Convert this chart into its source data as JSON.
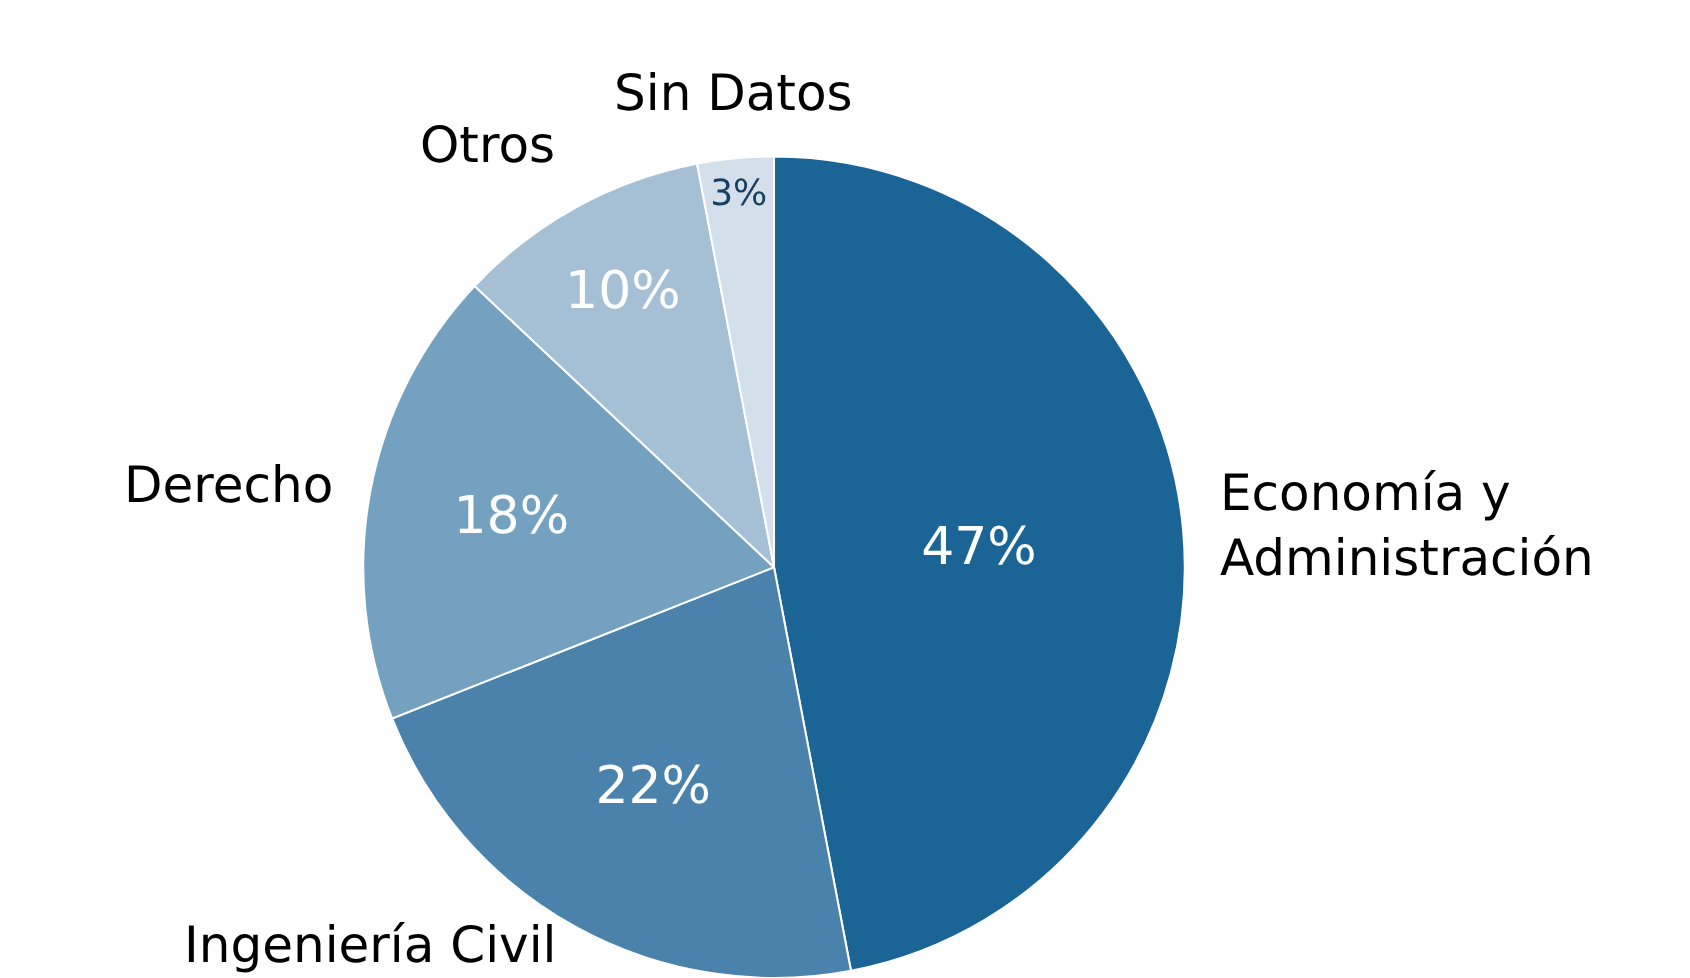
{
  "chart_data": {
    "type": "pie",
    "categories": [
      "Economía y\nAdministración",
      "Ingeniería Civil",
      "Derecho",
      "Otros",
      "Sin Datos"
    ],
    "values": [
      47,
      22,
      18,
      10,
      3
    ],
    "colors": [
      "#1a6496",
      "#4a82ab",
      "#75a1c0",
      "#a5bfd5",
      "#d3dfea"
    ],
    "value_labels": [
      "47%",
      "22%",
      "18%",
      "10%",
      "3%"
    ],
    "legend": false
  }
}
